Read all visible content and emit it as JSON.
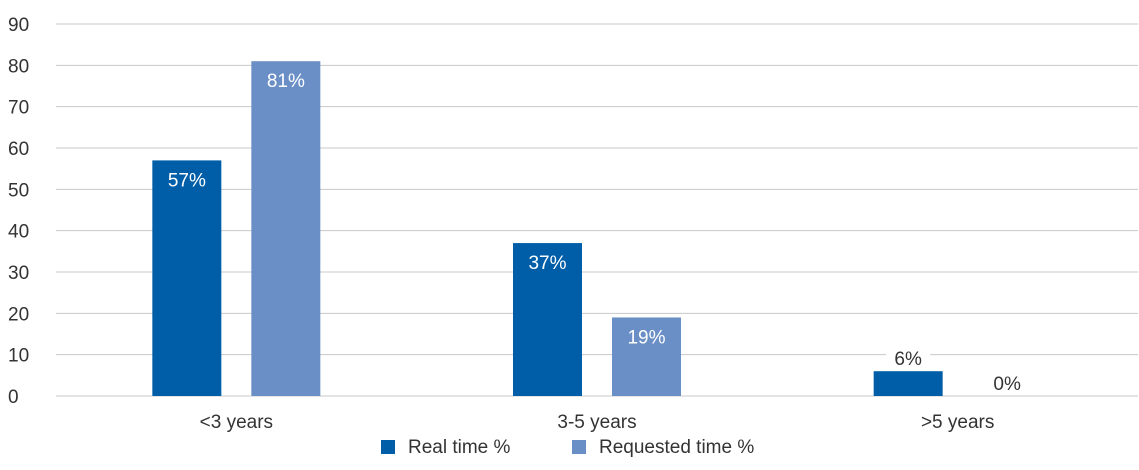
{
  "chart_data": {
    "type": "bar",
    "categories": [
      "<3 years",
      "3-5 years",
      ">5 years"
    ],
    "series": [
      {
        "name": "Real time %",
        "values": [
          57,
          37,
          6
        ],
        "labels": [
          "57%",
          "37%",
          "6%"
        ],
        "color": "#005ea8"
      },
      {
        "name": "Requested time %",
        "values": [
          81,
          19,
          0
        ],
        "labels": [
          "81%",
          "19%",
          "0%"
        ],
        "color": "#6a8fc6"
      }
    ],
    "yticks": [
      "0",
      "10",
      "20",
      "30",
      "40",
      "50",
      "60",
      "70",
      "80",
      "90"
    ],
    "ylim": [
      0,
      90
    ],
    "grid": true,
    "legend_position": "bottom",
    "title": "",
    "xlabel": "",
    "ylabel": ""
  }
}
